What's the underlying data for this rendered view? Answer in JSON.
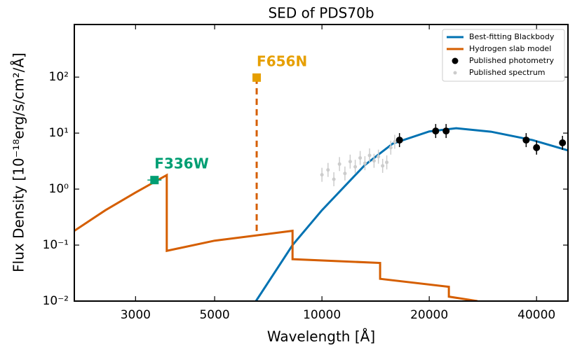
{
  "chart_data": {
    "type": "line",
    "title": "SED of PDS70b",
    "xlabel": "Wavelength [Å]",
    "ylabel": "Flux Density [10⁻¹⁸erg/s/cm²/Å]",
    "log_x": true,
    "log_y": true,
    "xlim": [
      2020,
      49000
    ],
    "ylim": [
      0.01,
      870
    ],
    "xticks": [
      3000,
      5000,
      10000,
      20000,
      40000
    ],
    "yticks": [
      {
        "value": 0.01,
        "label": "10⁻²"
      },
      {
        "value": 0.1,
        "label": "10⁻¹"
      },
      {
        "value": 1,
        "label": "10⁰"
      },
      {
        "value": 10,
        "label": "10¹"
      },
      {
        "value": 100,
        "label": "10²"
      }
    ],
    "legend": "upper right",
    "series": [
      {
        "name": "Best-fitting Blackbody",
        "color": "#0072b2",
        "style": "line",
        "x": [
          6530,
          8270,
          10000,
          13200,
          15800,
          20000,
          23800,
          29800,
          39000,
          49000
        ],
        "values": [
          0.01,
          0.1,
          0.42,
          2.7,
          6.5,
          10.7,
          12.2,
          10.6,
          7.5,
          4.9
        ]
      },
      {
        "name": "Hydrogen slab model",
        "color": "#d55e00",
        "style": "line",
        "x": [
          2020,
          2470,
          3000,
          3670,
          3670,
          5000,
          8270,
          8270,
          14560,
          14560,
          22700,
          22700,
          27300
        ],
        "values": [
          0.18,
          0.42,
          0.87,
          1.78,
          0.079,
          0.12,
          0.18,
          0.056,
          0.048,
          0.025,
          0.018,
          0.012,
          0.01
        ]
      },
      {
        "name": "Published photometry",
        "color": "#000000",
        "style": "marker",
        "x": [
          16500,
          20850,
          22300,
          37400,
          40000,
          47300
        ],
        "values": [
          7.5,
          10.9,
          10.9,
          7.5,
          5.5,
          6.7
        ]
      },
      {
        "name": "Published spectrum",
        "color": "#cccccc",
        "style": "small",
        "x": [
          10000,
          10400,
          10800,
          11200,
          11600,
          12000,
          12400,
          12800,
          13200,
          13600,
          14000,
          14400,
          14800,
          15200,
          15600,
          16000
        ],
        "values": [
          1.8,
          2.2,
          1.5,
          2.8,
          1.9,
          3.1,
          2.5,
          3.6,
          2.9,
          4.0,
          3.2,
          3.8,
          2.6,
          3.0,
          5.5,
          7.0
        ]
      }
    ],
    "annotations": [
      {
        "text": "F336W",
        "color": "#009e73",
        "x": 3390,
        "y": 1.45
      },
      {
        "text": "F656N",
        "color": "#e69f00",
        "x": 6560,
        "y": 98,
        "base": 0.16
      }
    ]
  }
}
